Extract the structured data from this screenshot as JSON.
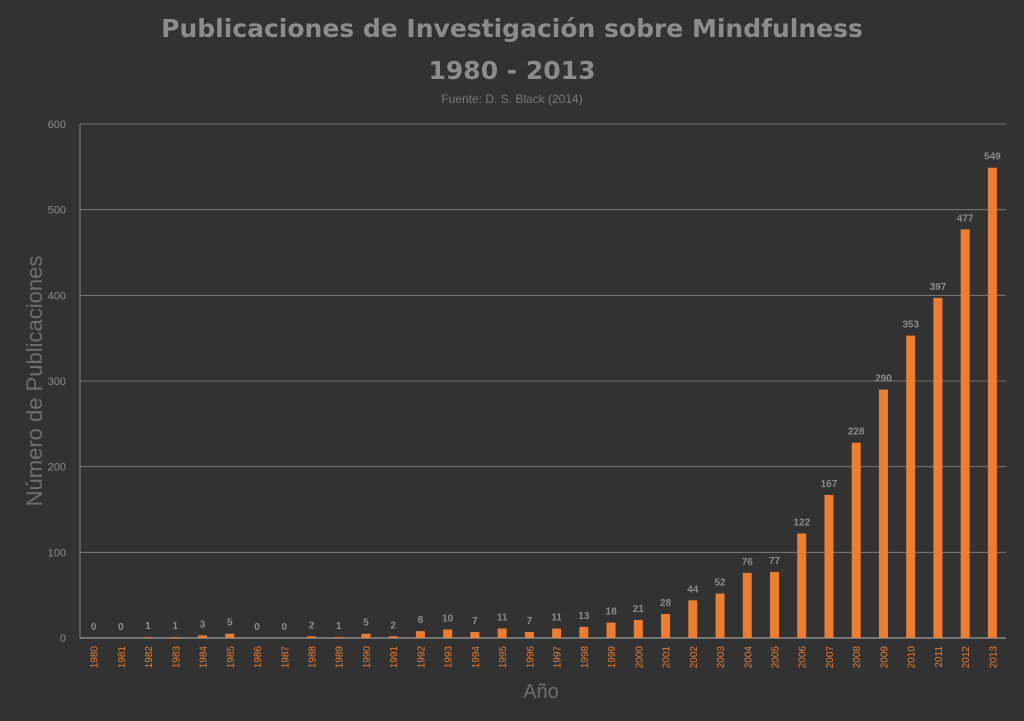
{
  "colors": {
    "background": "#323232",
    "bar": "#ed7d31",
    "gridline": "#9a9a9a",
    "text": "#8c8c8c",
    "xtick": "#ed7d31"
  },
  "chart_data": {
    "type": "bar",
    "title": "Publicaciones de Investigación sobre Mindfulness",
    "subtitle": "1980 - 2013",
    "source": "Fuente: D. S. Black (2014)",
    "xlabel": "Año",
    "ylabel": "Número de Publicaciones",
    "ylim": [
      0,
      600
    ],
    "yticks": [
      0,
      100,
      200,
      300,
      400,
      500,
      600
    ],
    "grid": true,
    "legend": "none",
    "categories": [
      "1980",
      "1981",
      "1982",
      "1983",
      "1984",
      "1985",
      "1986",
      "1987",
      "1988",
      "1989",
      "1990",
      "1991",
      "1992",
      "1993",
      "1994",
      "1995",
      "1996",
      "1997",
      "1998",
      "1999",
      "2000",
      "2001",
      "2002",
      "2003",
      "2004",
      "2005",
      "2006",
      "2007",
      "2008",
      "2009",
      "2010",
      "2011",
      "2012",
      "2013"
    ],
    "values": [
      0,
      0,
      1,
      1,
      3,
      5,
      0,
      0,
      2,
      1,
      5,
      2,
      8,
      10,
      7,
      11,
      7,
      11,
      13,
      18,
      21,
      28,
      44,
      52,
      76,
      77,
      122,
      167,
      228,
      290,
      353,
      397,
      477,
      549
    ],
    "data_labels": [
      "0",
      "0",
      "1",
      "1",
      "3",
      "5",
      "0",
      "0",
      "2",
      "1",
      "5",
      "2",
      "8",
      "10",
      "7",
      "11",
      "7",
      "11",
      "13",
      "18",
      "21",
      "28",
      "44",
      "52",
      "76",
      "77",
      "122",
      "167",
      "228",
      "290",
      "353",
      "397",
      "477",
      "549"
    ]
  }
}
